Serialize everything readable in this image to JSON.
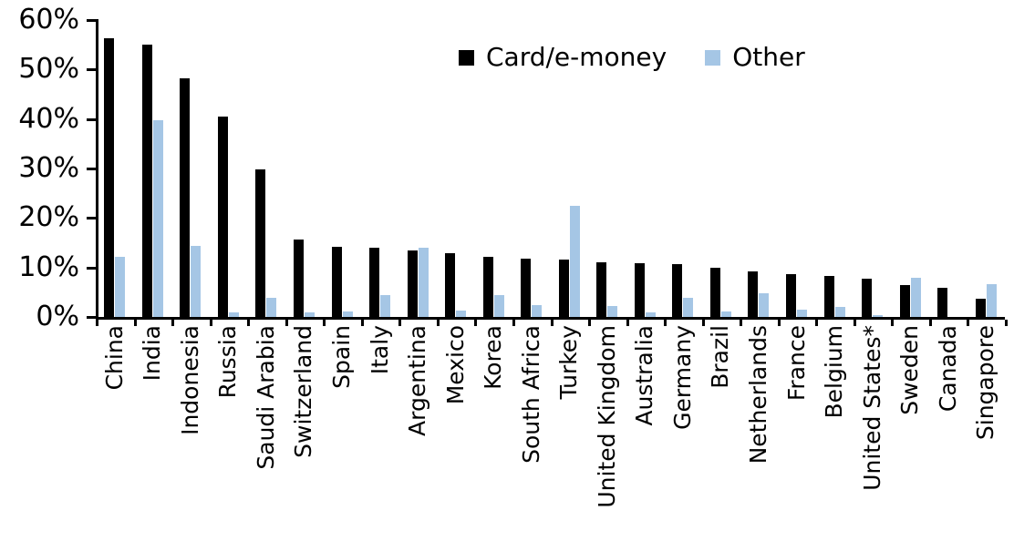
{
  "chart_data": {
    "type": "bar",
    "title": "",
    "xlabel": "",
    "ylabel": "",
    "ylim": [
      0,
      60
    ],
    "ytick_step": 10,
    "ytick_labels": [
      "0%",
      "10%",
      "20%",
      "30%",
      "40%",
      "50%",
      "60%"
    ],
    "grid": false,
    "legend_position": "top-center",
    "categories": [
      "China",
      "India",
      "Indonesia",
      "Russia",
      "Saudi Arabia",
      "Switzerland",
      "Spain",
      "Italy",
      "Argentina",
      "Mexico",
      "Korea",
      "South Africa",
      "Turkey",
      "United Kingdom",
      "Australia",
      "Germany",
      "Brazil",
      "Netherlands",
      "France",
      "Belgium",
      "United States*",
      "Sweden",
      "Canada",
      "Singapore"
    ],
    "series": [
      {
        "name": "Card/e-money",
        "color": "#000000",
        "values": [
          56.3,
          55.1,
          48.2,
          40.5,
          29.8,
          15.6,
          14.1,
          14.0,
          13.4,
          12.8,
          12.2,
          11.8,
          11.6,
          11.1,
          10.8,
          10.6,
          10.0,
          9.2,
          8.6,
          8.2,
          7.8,
          6.5,
          5.9,
          3.7
        ]
      },
      {
        "name": "Other",
        "color": "#A5C6E5",
        "values": [
          12.2,
          39.7,
          14.4,
          0.9,
          3.8,
          0.9,
          1.1,
          4.5,
          13.9,
          1.3,
          4.4,
          2.4,
          22.5,
          2.3,
          1.0,
          3.9,
          1.1,
          4.8,
          1.5,
          2.0,
          0.3,
          8.0,
          0,
          6.6
        ]
      }
    ]
  }
}
